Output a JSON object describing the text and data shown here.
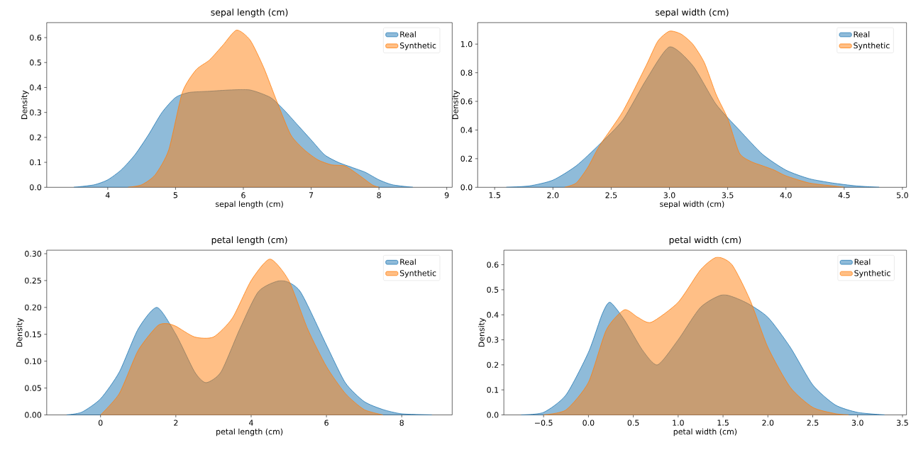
{
  "chart_data": [
    {
      "type": "area",
      "title": "sepal length (cm)",
      "xlabel": "sepal length (cm)",
      "ylabel": "Density",
      "legend": "top right",
      "xlim": [
        3.1,
        9.08
      ],
      "ylim": [
        0,
        0.66
      ],
      "xticks": [
        4,
        5,
        6,
        7,
        8,
        9
      ],
      "yticks": [
        {
          "value": 0,
          "label": "0.0"
        },
        0.1,
        0.2,
        0.3,
        0.4,
        0.5,
        0.6
      ],
      "series": [
        {
          "name": "Real",
          "color": "#1f77b4",
          "x": [
            3.5,
            3.8,
            4.0,
            4.2,
            4.4,
            4.6,
            4.8,
            5.0,
            5.2,
            5.5,
            5.8,
            6.1,
            6.4,
            6.6,
            6.8,
            7.0,
            7.2,
            7.4,
            7.6,
            7.8,
            8.0,
            8.2,
            8.5
          ],
          "values": [
            0,
            0.01,
            0.03,
            0.07,
            0.13,
            0.21,
            0.3,
            0.36,
            0.38,
            0.385,
            0.39,
            0.39,
            0.36,
            0.31,
            0.25,
            0.19,
            0.13,
            0.1,
            0.08,
            0.06,
            0.03,
            0.01,
            0
          ]
        },
        {
          "name": "Synthetic",
          "color": "#ff7f0e",
          "x": [
            4.3,
            4.5,
            4.7,
            4.9,
            5.1,
            5.3,
            5.5,
            5.7,
            5.9,
            6.1,
            6.3,
            6.5,
            6.7,
            6.9,
            7.1,
            7.3,
            7.5,
            7.7,
            7.9,
            8.0
          ],
          "values": [
            0,
            0.01,
            0.05,
            0.15,
            0.38,
            0.47,
            0.51,
            0.57,
            0.63,
            0.59,
            0.48,
            0.34,
            0.21,
            0.15,
            0.11,
            0.09,
            0.085,
            0.05,
            0.01,
            0
          ]
        }
      ]
    },
    {
      "type": "area",
      "title": "sepal width (cm)",
      "xlabel": "sepal width (cm)",
      "ylabel": "Density",
      "legend": "top right",
      "xlim": [
        1.354,
        5.035
      ],
      "ylim": [
        0,
        1.15
      ],
      "xticks": [
        1.5,
        {
          "value": 2,
          "label": "2.0"
        },
        2.5,
        {
          "value": 3,
          "label": "3.0"
        },
        3.5,
        {
          "value": 4,
          "label": "4.0"
        },
        4.5,
        {
          "value": 5,
          "label": "5.0"
        }
      ],
      "yticks": [
        {
          "value": 0,
          "label": "0.0"
        },
        0.2,
        0.4,
        0.6,
        0.8,
        {
          "value": 1,
          "label": "1.0"
        }
      ],
      "series": [
        {
          "name": "Real",
          "color": "#1f77b4",
          "x": [
            1.6,
            1.8,
            2.0,
            2.2,
            2.4,
            2.6,
            2.8,
            3.0,
            3.2,
            3.4,
            3.6,
            3.8,
            4.0,
            4.2,
            4.4,
            4.6,
            4.8
          ],
          "values": [
            0,
            0.01,
            0.05,
            0.15,
            0.3,
            0.47,
            0.75,
            0.98,
            0.85,
            0.58,
            0.4,
            0.23,
            0.12,
            0.06,
            0.03,
            0.01,
            0
          ]
        },
        {
          "name": "Synthetic",
          "color": "#ff7f0e",
          "x": [
            2.1,
            2.2,
            2.3,
            2.4,
            2.6,
            2.8,
            2.9,
            3.0,
            3.1,
            3.2,
            3.3,
            3.4,
            3.5,
            3.6,
            3.7,
            3.8,
            3.9,
            4.0,
            4.2,
            4.4,
            4.5
          ],
          "values": [
            0,
            0.03,
            0.14,
            0.29,
            0.53,
            0.85,
            1.02,
            1.09,
            1.07,
            1.0,
            0.87,
            0.65,
            0.48,
            0.24,
            0.18,
            0.15,
            0.12,
            0.08,
            0.03,
            0.01,
            0
          ]
        }
      ]
    },
    {
      "type": "area",
      "title": "petal length (cm)",
      "xlabel": "petal length (cm)",
      "ylabel": "Density",
      "legend": "top right",
      "xlim": [
        -1.43,
        9.34
      ],
      "ylim": [
        0,
        0.3065
      ],
      "xticks": [
        0,
        2,
        4,
        6,
        8
      ],
      "yticks": [
        {
          "value": 0,
          "label": "0.00"
        },
        0.05,
        {
          "value": 0.1,
          "label": "0.10"
        },
        0.15,
        {
          "value": 0.2,
          "label": "0.20"
        },
        0.25,
        {
          "value": 0.3,
          "label": "0.30"
        }
      ],
      "series": [
        {
          "name": "Real",
          "color": "#1f77b4",
          "x": [
            -0.9,
            -0.5,
            0,
            0.5,
            1.0,
            1.5,
            2.0,
            2.5,
            2.8,
            3.2,
            3.7,
            4.2,
            4.8,
            5.3,
            6.0,
            6.5,
            7.0,
            7.5,
            8.0,
            8.8
          ],
          "values": [
            0,
            0.005,
            0.03,
            0.08,
            0.16,
            0.2,
            0.15,
            0.08,
            0.06,
            0.08,
            0.16,
            0.23,
            0.25,
            0.23,
            0.13,
            0.06,
            0.025,
            0.01,
            0.002,
            0
          ]
        },
        {
          "name": "Synthetic",
          "color": "#ff7f0e",
          "x": [
            0,
            0.5,
            1.0,
            1.5,
            1.75,
            2.0,
            2.5,
            3.0,
            3.5,
            4.0,
            4.5,
            5.0,
            5.5,
            6.0,
            6.5,
            7.0,
            7.5
          ],
          "values": [
            0,
            0.04,
            0.12,
            0.165,
            0.17,
            0.165,
            0.145,
            0.145,
            0.18,
            0.25,
            0.29,
            0.25,
            0.16,
            0.09,
            0.04,
            0.01,
            0
          ]
        }
      ]
    },
    {
      "type": "area",
      "title": "petal width (cm)",
      "xlabel": "petal width (cm)",
      "ylabel": "Density",
      "legend": "top right",
      "xlim": [
        -0.943,
        3.545
      ],
      "ylim": [
        0,
        0.658
      ],
      "xticks": [
        {
          "value": -0.5,
          "label": "−0.5"
        },
        {
          "value": 0,
          "label": "0.0"
        },
        0.5,
        {
          "value": 1,
          "label": "1.0"
        },
        1.5,
        {
          "value": 2,
          "label": "2.0"
        },
        2.5,
        {
          "value": 3,
          "label": "3.0"
        },
        3.5
      ],
      "yticks": [
        {
          "value": 0,
          "label": "0.0"
        },
        0.1,
        0.2,
        0.3,
        0.4,
        0.5,
        0.6
      ],
      "series": [
        {
          "name": "Real",
          "color": "#1f77b4",
          "x": [
            -0.75,
            -0.5,
            -0.25,
            0,
            0.15,
            0.24,
            0.4,
            0.6,
            0.77,
            1.0,
            1.25,
            1.5,
            1.75,
            2.0,
            2.25,
            2.5,
            2.75,
            3.0,
            3.3
          ],
          "values": [
            0,
            0.01,
            0.08,
            0.25,
            0.4,
            0.45,
            0.38,
            0.26,
            0.2,
            0.3,
            0.43,
            0.48,
            0.45,
            0.39,
            0.27,
            0.12,
            0.04,
            0.01,
            0
          ]
        },
        {
          "name": "Synthetic",
          "color": "#ff7f0e",
          "x": [
            -0.5,
            -0.25,
            0,
            0.2,
            0.4,
            0.55,
            0.7,
            1.0,
            1.25,
            1.43,
            1.6,
            1.8,
            2.0,
            2.25,
            2.5,
            2.75,
            2.9
          ],
          "values": [
            0,
            0.02,
            0.13,
            0.34,
            0.42,
            0.39,
            0.37,
            0.45,
            0.58,
            0.63,
            0.6,
            0.46,
            0.27,
            0.11,
            0.03,
            0.005,
            0
          ]
        }
      ]
    }
  ]
}
